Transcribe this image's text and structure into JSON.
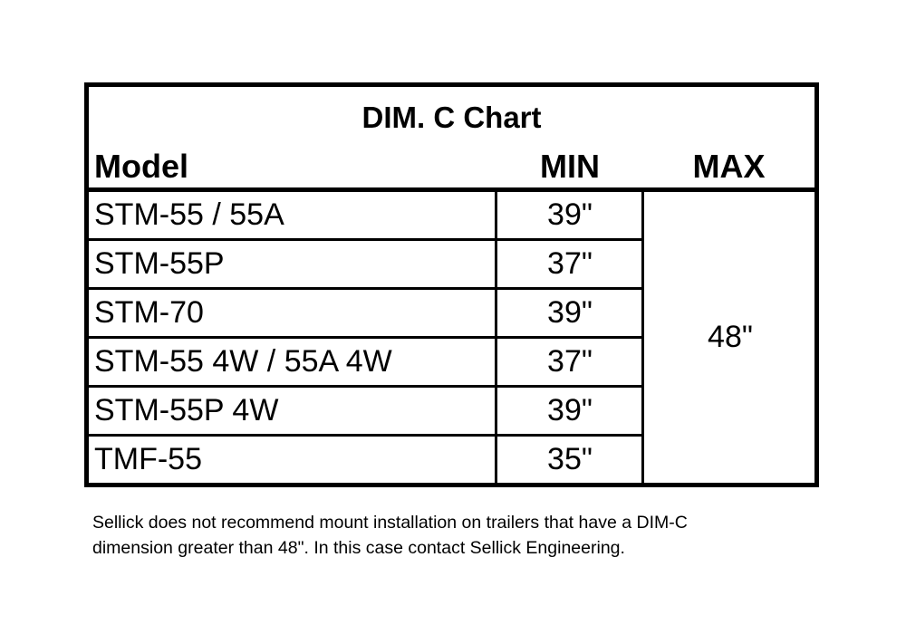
{
  "chart": {
    "title": "DIM. C Chart",
    "headers": {
      "model": "Model",
      "min": "MIN",
      "max": "MAX"
    },
    "rows": [
      {
        "model": "STM-55 / 55A",
        "min": "39\""
      },
      {
        "model": "STM-55P",
        "min": "37\""
      },
      {
        "model": "STM-70",
        "min": "39\""
      },
      {
        "model": "STM-55 4W / 55A 4W",
        "min": "37\""
      },
      {
        "model": "STM-55P 4W",
        "min": "39\""
      },
      {
        "model": "TMF-55",
        "min": "35\""
      }
    ],
    "max_value": "48\""
  },
  "footnote": {
    "line1": "Sellick does not recommend mount installation on trailers that have a DIM-C",
    "line2": "dimension greater than 48\".  In this case contact Sellick Engineering."
  }
}
